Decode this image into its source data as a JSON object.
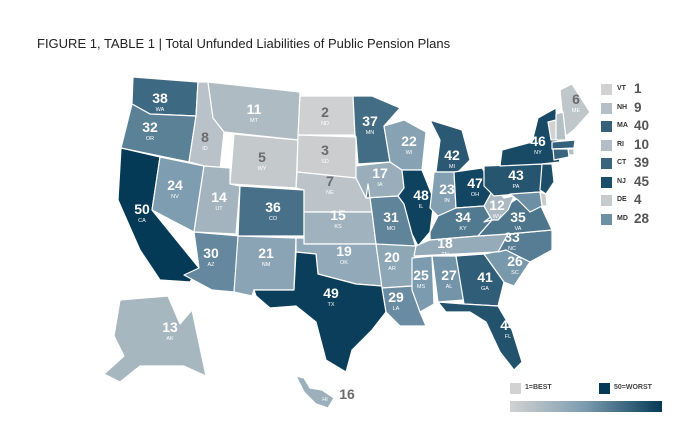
{
  "title": "FIGURE 1, TABLE 1 | Total Unfunded Liabilities of Public Pension Plans",
  "colors": {
    "low": "#d2d2d2",
    "high": "#053a57",
    "mid": "#6fa4cf"
  },
  "states": [
    {
      "abbr": "WA",
      "rank": 38
    },
    {
      "abbr": "OR",
      "rank": 32
    },
    {
      "abbr": "CA",
      "rank": 50
    },
    {
      "abbr": "NV",
      "rank": 24
    },
    {
      "abbr": "ID",
      "rank": 8
    },
    {
      "abbr": "MT",
      "rank": 11
    },
    {
      "abbr": "WY",
      "rank": 5
    },
    {
      "abbr": "UT",
      "rank": 14
    },
    {
      "abbr": "AZ",
      "rank": 30
    },
    {
      "abbr": "CO",
      "rank": 36
    },
    {
      "abbr": "NM",
      "rank": 21
    },
    {
      "abbr": "ND",
      "rank": 2
    },
    {
      "abbr": "SD",
      "rank": 3
    },
    {
      "abbr": "NE",
      "rank": 7
    },
    {
      "abbr": "KS",
      "rank": 15
    },
    {
      "abbr": "OK",
      "rank": 19
    },
    {
      "abbr": "TX",
      "rank": 49
    },
    {
      "abbr": "MN",
      "rank": 37
    },
    {
      "abbr": "IA",
      "rank": 17
    },
    {
      "abbr": "MO",
      "rank": 31
    },
    {
      "abbr": "AR",
      "rank": 20
    },
    {
      "abbr": "LA",
      "rank": 29
    },
    {
      "abbr": "WI",
      "rank": 22
    },
    {
      "abbr": "IL",
      "rank": 48
    },
    {
      "abbr": "MI",
      "rank": 42
    },
    {
      "abbr": "IN",
      "rank": 23
    },
    {
      "abbr": "OH",
      "rank": 47
    },
    {
      "abbr": "KY",
      "rank": 34
    },
    {
      "abbr": "TN",
      "rank": 18
    },
    {
      "abbr": "MS",
      "rank": 25
    },
    {
      "abbr": "AL",
      "rank": 27
    },
    {
      "abbr": "GA",
      "rank": 41
    },
    {
      "abbr": "FL",
      "rank": 44
    },
    {
      "abbr": "SC",
      "rank": 26
    },
    {
      "abbr": "NC",
      "rank": 33
    },
    {
      "abbr": "VA",
      "rank": 35
    },
    {
      "abbr": "WV",
      "rank": 12
    },
    {
      "abbr": "PA",
      "rank": 43
    },
    {
      "abbr": "NY",
      "rank": 46
    },
    {
      "abbr": "ME",
      "rank": 6
    },
    {
      "abbr": "AK",
      "rank": 13
    },
    {
      "abbr": "HI",
      "rank": 16
    },
    {
      "abbr": "VT",
      "rank": 1
    },
    {
      "abbr": "NH",
      "rank": 9
    },
    {
      "abbr": "MA",
      "rank": 40
    },
    {
      "abbr": "RI",
      "rank": 10
    },
    {
      "abbr": "CT",
      "rank": 39
    },
    {
      "abbr": "NJ",
      "rank": 45
    },
    {
      "abbr": "DE",
      "rank": 4
    },
    {
      "abbr": "MD",
      "rank": 28
    }
  ],
  "small_states": [
    "VT",
    "NH",
    "MA",
    "RI",
    "CT",
    "NJ",
    "DE",
    "MD"
  ],
  "legend": {
    "best": "1=BEST",
    "worst": "50=WORST"
  }
}
